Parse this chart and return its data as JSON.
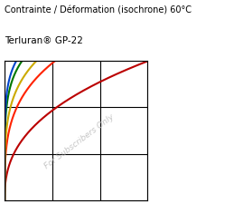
{
  "title_line1": "Contrainte / Déformation (isochrone) 60°C",
  "title_line2": "Terluran® GP-22",
  "watermark": "For Subscribers Only",
  "background_color": "#ffffff",
  "plot_bg_color": "#ffffff",
  "grid_color": "#000000",
  "curve_colors": [
    "#bb0000",
    "#ff2200",
    "#007700",
    "#0044cc",
    "#ccaa00"
  ],
  "xlim": [
    0,
    1
  ],
  "ylim": [
    0,
    1
  ],
  "figsize": [
    2.59,
    2.25
  ],
  "dpi": 100
}
